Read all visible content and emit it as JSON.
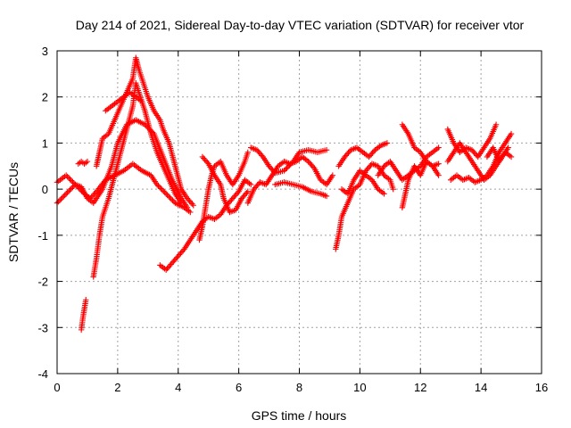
{
  "chart_data": {
    "type": "scatter",
    "title": "Day 214 of 2021, Sidereal Day-to-day VTEC variation (SDTVAR) for receiver vtor",
    "xlabel": "GPS time / hours",
    "ylabel": "SDTVAR / TECUs",
    "xlim": [
      0,
      16
    ],
    "ylim": [
      -4,
      3
    ],
    "xticks": [
      "0",
      "2",
      "4",
      "6",
      "8",
      "10",
      "12",
      "14",
      "16"
    ],
    "yticks": [
      "-4",
      "-3",
      "-2",
      "-1",
      "0",
      "1",
      "2",
      "3"
    ],
    "grid": true,
    "marker": "plus",
    "color": "#ff0000",
    "tracks": [
      [
        [
          0.0,
          0.15
        ],
        [
          0.3,
          0.3
        ],
        [
          0.6,
          0.1
        ],
        [
          0.9,
          -0.1
        ],
        [
          1.1,
          -0.2
        ],
        [
          1.3,
          -0.05
        ],
        [
          1.6,
          0.2
        ],
        [
          1.9,
          0.3
        ],
        [
          2.2,
          0.4
        ],
        [
          2.5,
          0.55
        ],
        [
          2.8,
          0.4
        ],
        [
          3.1,
          0.3
        ],
        [
          3.3,
          0.1
        ],
        [
          3.6,
          -0.1
        ],
        [
          3.9,
          -0.3
        ],
        [
          4.2,
          -0.4
        ],
        [
          4.4,
          -0.5
        ]
      ],
      [
        [
          0.0,
          -0.3
        ],
        [
          0.3,
          -0.1
        ],
        [
          0.6,
          0.1
        ],
        [
          0.8,
          0.05
        ],
        [
          1.0,
          -0.2
        ],
        [
          1.2,
          -0.3
        ],
        [
          1.5,
          0.0
        ],
        [
          1.8,
          0.5
        ],
        [
          2.0,
          1.0
        ],
        [
          2.3,
          1.4
        ],
        [
          2.6,
          1.5
        ],
        [
          2.9,
          1.4
        ],
        [
          3.2,
          1.2
        ],
        [
          3.5,
          0.7
        ],
        [
          3.8,
          0.2
        ],
        [
          4.1,
          -0.2
        ],
        [
          4.3,
          -0.4
        ]
      ],
      [
        [
          0.7,
          0.55
        ],
        [
          0.8,
          0.6
        ],
        [
          0.9,
          0.55
        ],
        [
          1.0,
          0.6
        ]
      ],
      [
        [
          0.8,
          -3.05
        ],
        [
          0.85,
          -2.8
        ],
        [
          0.9,
          -2.6
        ],
        [
          0.95,
          -2.4
        ]
      ],
      [
        [
          1.2,
          -1.9
        ],
        [
          1.3,
          -1.5
        ],
        [
          1.4,
          -1.0
        ],
        [
          1.5,
          -0.6
        ],
        [
          1.7,
          -0.2
        ],
        [
          1.9,
          0.3
        ],
        [
          2.1,
          0.8
        ],
        [
          2.3,
          1.3
        ],
        [
          2.5,
          1.8
        ],
        [
          2.6,
          2.3
        ],
        [
          2.7,
          2.1
        ],
        [
          2.9,
          1.7
        ],
        [
          3.1,
          1.2
        ],
        [
          3.3,
          0.8
        ],
        [
          3.5,
          0.5
        ],
        [
          3.7,
          0.2
        ],
        [
          3.9,
          -0.1
        ],
        [
          4.1,
          -0.3
        ]
      ],
      [
        [
          1.3,
          0.5
        ],
        [
          1.4,
          0.8
        ],
        [
          1.5,
          1.1
        ],
        [
          1.7,
          1.2
        ],
        [
          1.9,
          1.5
        ],
        [
          2.1,
          1.8
        ],
        [
          2.3,
          2.1
        ],
        [
          2.5,
          2.4
        ],
        [
          2.6,
          2.85
        ],
        [
          2.7,
          2.6
        ],
        [
          2.9,
          2.2
        ],
        [
          3.0,
          2.0
        ],
        [
          3.2,
          1.7
        ],
        [
          3.4,
          1.5
        ],
        [
          3.5,
          1.3
        ],
        [
          3.7,
          1.0
        ],
        [
          3.9,
          0.5
        ],
        [
          4.1,
          0.0
        ],
        [
          4.3,
          -0.2
        ],
        [
          4.5,
          -0.35
        ]
      ],
      [
        [
          1.6,
          1.7
        ],
        [
          1.8,
          1.8
        ],
        [
          2.0,
          1.9
        ],
        [
          2.2,
          2.0
        ],
        [
          2.4,
          2.1
        ],
        [
          2.6,
          2.0
        ],
        [
          2.8,
          1.9
        ]
      ],
      [
        [
          3.4,
          -1.65
        ],
        [
          3.6,
          -1.75
        ],
        [
          3.8,
          -1.6
        ],
        [
          4.0,
          -1.45
        ],
        [
          4.2,
          -1.3
        ],
        [
          4.4,
          -1.1
        ],
        [
          4.6,
          -0.9
        ],
        [
          4.8,
          -0.7
        ],
        [
          5.0,
          -0.6
        ],
        [
          5.2,
          -0.65
        ],
        [
          5.4,
          -0.55
        ],
        [
          5.6,
          -0.35
        ],
        [
          5.8,
          -0.2
        ],
        [
          6.0,
          -0.05
        ],
        [
          6.2,
          0.2
        ],
        [
          6.4,
          0.1
        ]
      ],
      [
        [
          4.7,
          -1.1
        ],
        [
          4.8,
          -0.8
        ],
        [
          4.9,
          -0.4
        ],
        [
          5.0,
          0.0
        ],
        [
          5.1,
          0.3
        ],
        [
          5.2,
          0.5
        ],
        [
          5.4,
          0.6
        ],
        [
          5.6,
          0.3
        ],
        [
          5.8,
          0.1
        ],
        [
          6.0,
          0.3
        ],
        [
          6.2,
          0.6
        ],
        [
          6.3,
          0.8
        ]
      ],
      [
        [
          4.8,
          0.7
        ],
        [
          5.0,
          0.55
        ],
        [
          5.2,
          0.3
        ],
        [
          5.4,
          0.1
        ],
        [
          5.5,
          -0.2
        ],
        [
          5.7,
          -0.5
        ],
        [
          5.9,
          -0.45
        ],
        [
          6.1,
          -0.2
        ],
        [
          6.3,
          -0.05
        ]
      ],
      [
        [
          6.3,
          -0.3
        ],
        [
          6.5,
          0.0
        ],
        [
          6.7,
          0.15
        ],
        [
          6.9,
          0.1
        ],
        [
          7.1,
          0.3
        ],
        [
          7.3,
          0.5
        ],
        [
          7.5,
          0.6
        ],
        [
          7.7,
          0.55
        ],
        [
          7.9,
          0.6
        ],
        [
          8.1,
          0.7
        ],
        [
          8.3,
          0.6
        ],
        [
          8.5,
          0.45
        ],
        [
          8.7,
          0.2
        ],
        [
          8.9,
          0.1
        ],
        [
          9.1,
          0.3
        ]
      ],
      [
        [
          6.4,
          0.9
        ],
        [
          6.6,
          0.85
        ],
        [
          6.8,
          0.7
        ],
        [
          7.0,
          0.5
        ],
        [
          7.2,
          0.35
        ],
        [
          7.5,
          0.4
        ],
        [
          7.8,
          0.6
        ],
        [
          8.0,
          0.8
        ],
        [
          8.3,
          0.85
        ],
        [
          8.6,
          0.8
        ],
        [
          8.9,
          0.85
        ]
      ],
      [
        [
          7.2,
          0.1
        ],
        [
          7.5,
          0.15
        ],
        [
          7.8,
          0.1
        ],
        [
          8.1,
          0.05
        ],
        [
          8.4,
          -0.05
        ],
        [
          8.7,
          -0.1
        ],
        [
          8.9,
          -0.15
        ]
      ],
      [
        [
          9.2,
          -1.3
        ],
        [
          9.3,
          -1.0
        ],
        [
          9.4,
          -0.6
        ],
        [
          9.6,
          -0.3
        ],
        [
          9.8,
          0.0
        ],
        [
          10.0,
          0.1
        ],
        [
          10.2,
          0.4
        ],
        [
          10.4,
          0.55
        ],
        [
          10.6,
          0.5
        ],
        [
          10.8,
          0.3
        ],
        [
          11.0,
          0.2
        ],
        [
          11.1,
          0.0
        ]
      ],
      [
        [
          9.3,
          0.5
        ],
        [
          9.5,
          0.7
        ],
        [
          9.7,
          0.85
        ],
        [
          9.9,
          0.9
        ],
        [
          10.1,
          0.8
        ],
        [
          10.3,
          0.7
        ],
        [
          10.5,
          0.85
        ],
        [
          10.7,
          0.95
        ],
        [
          10.9,
          1.0
        ]
      ],
      [
        [
          9.4,
          0.0
        ],
        [
          9.6,
          -0.1
        ],
        [
          9.8,
          0.2
        ],
        [
          10.0,
          0.4
        ],
        [
          10.2,
          0.3
        ],
        [
          10.4,
          0.2
        ],
        [
          10.6,
          0.0
        ],
        [
          10.8,
          -0.1
        ]
      ],
      [
        [
          10.6,
          0.3
        ],
        [
          10.8,
          0.5
        ],
        [
          11.0,
          0.6
        ],
        [
          11.2,
          0.4
        ],
        [
          11.4,
          0.2
        ],
        [
          11.6,
          0.3
        ],
        [
          11.8,
          0.4
        ],
        [
          12.0,
          0.5
        ],
        [
          12.2,
          0.7
        ],
        [
          12.4,
          0.8
        ],
        [
          12.6,
          0.9
        ]
      ],
      [
        [
          11.4,
          -0.4
        ],
        [
          11.5,
          -0.1
        ],
        [
          11.6,
          0.2
        ],
        [
          11.8,
          0.5
        ],
        [
          12.0,
          0.3
        ],
        [
          12.2,
          0.6
        ],
        [
          12.4,
          0.5
        ],
        [
          12.6,
          0.55
        ]
      ],
      [
        [
          11.4,
          1.4
        ],
        [
          11.6,
          1.2
        ],
        [
          11.8,
          0.9
        ],
        [
          12.0,
          0.8
        ],
        [
          12.2,
          0.6
        ],
        [
          12.4,
          0.5
        ],
        [
          12.6,
          0.3
        ]
      ],
      [
        [
          12.9,
          1.3
        ],
        [
          13.1,
          1.0
        ],
        [
          13.3,
          0.8
        ],
        [
          13.5,
          0.9
        ],
        [
          13.7,
          0.85
        ],
        [
          13.9,
          0.7
        ],
        [
          14.1,
          0.9
        ],
        [
          14.3,
          1.1
        ],
        [
          14.5,
          1.4
        ]
      ],
      [
        [
          12.9,
          0.6
        ],
        [
          13.1,
          0.8
        ],
        [
          13.3,
          1.0
        ],
        [
          13.5,
          0.8
        ],
        [
          13.7,
          0.6
        ],
        [
          13.9,
          0.4
        ],
        [
          14.1,
          0.2
        ],
        [
          14.3,
          0.3
        ],
        [
          14.5,
          0.5
        ],
        [
          14.7,
          0.7
        ],
        [
          14.9,
          0.9
        ]
      ],
      [
        [
          13.0,
          0.2
        ],
        [
          13.2,
          0.3
        ],
        [
          13.4,
          0.2
        ],
        [
          13.6,
          0.25
        ],
        [
          13.8,
          0.15
        ],
        [
          14.0,
          0.2
        ],
        [
          14.2,
          0.3
        ],
        [
          14.4,
          0.5
        ],
        [
          14.6,
          0.8
        ],
        [
          14.8,
          1.0
        ],
        [
          15.0,
          1.2
        ]
      ],
      [
        [
          14.2,
          0.7
        ],
        [
          14.4,
          0.9
        ],
        [
          14.6,
          0.6
        ],
        [
          14.8,
          0.8
        ],
        [
          15.0,
          0.7
        ]
      ]
    ]
  }
}
